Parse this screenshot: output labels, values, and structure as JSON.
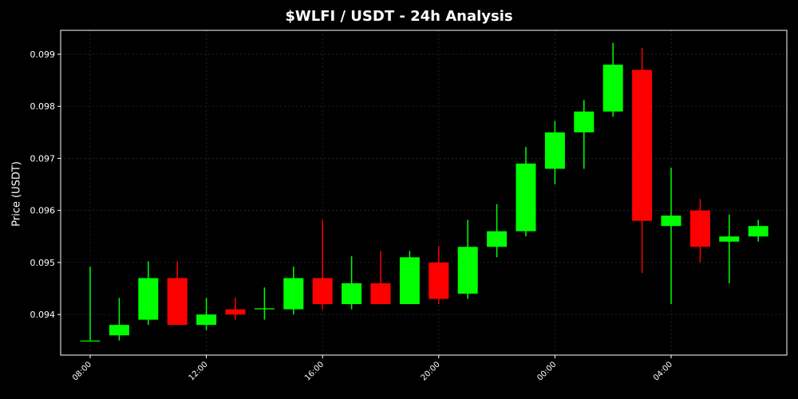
{
  "chart_data": {
    "type": "candlestick",
    "title": "$WLFI / USDT - 24h Analysis",
    "xlabel": "",
    "ylabel": "Price (USDT)",
    "ylim": [
      0.09322,
      0.09946
    ],
    "y_ticks": [
      "0.094",
      "0.095",
      "0.096",
      "0.097",
      "0.098",
      "0.099"
    ],
    "x_ticks": [
      "08:00",
      "12:00",
      "16:00",
      "20:00",
      "00:00",
      "04:00"
    ],
    "grid": true,
    "up_color": "#00ff00",
    "down_color": "#ff0000",
    "candles": [
      {
        "time": "08:00",
        "open": 0.0935,
        "high": 0.09492,
        "low": 0.0935,
        "close": 0.0935
      },
      {
        "time": "09:00",
        "open": 0.0936,
        "high": 0.09432,
        "low": 0.0935,
        "close": 0.0938
      },
      {
        "time": "10:00",
        "open": 0.0939,
        "high": 0.09502,
        "low": 0.0938,
        "close": 0.0947
      },
      {
        "time": "11:00",
        "open": 0.0947,
        "high": 0.09502,
        "low": 0.0938,
        "close": 0.0938
      },
      {
        "time": "12:00",
        "open": 0.0938,
        "high": 0.09432,
        "low": 0.0937,
        "close": 0.094
      },
      {
        "time": "13:00",
        "open": 0.0941,
        "high": 0.09432,
        "low": 0.0939,
        "close": 0.094
      },
      {
        "time": "14:00",
        "open": 0.0941,
        "high": 0.09452,
        "low": 0.0939,
        "close": 0.09412
      },
      {
        "time": "15:00",
        "open": 0.0941,
        "high": 0.09492,
        "low": 0.094,
        "close": 0.0947
      },
      {
        "time": "16:00",
        "open": 0.0947,
        "high": 0.09582,
        "low": 0.0941,
        "close": 0.0942
      },
      {
        "time": "17:00",
        "open": 0.0942,
        "high": 0.09512,
        "low": 0.0941,
        "close": 0.0946
      },
      {
        "time": "18:00",
        "open": 0.0946,
        "high": 0.09522,
        "low": 0.0942,
        "close": 0.0942
      },
      {
        "time": "19:00",
        "open": 0.0942,
        "high": 0.09522,
        "low": 0.0942,
        "close": 0.0951
      },
      {
        "time": "20:00",
        "open": 0.095,
        "high": 0.09532,
        "low": 0.0942,
        "close": 0.0943
      },
      {
        "time": "21:00",
        "open": 0.0944,
        "high": 0.09582,
        "low": 0.0943,
        "close": 0.0953
      },
      {
        "time": "22:00",
        "open": 0.0953,
        "high": 0.09612,
        "low": 0.0951,
        "close": 0.0956
      },
      {
        "time": "23:00",
        "open": 0.0956,
        "high": 0.09722,
        "low": 0.0955,
        "close": 0.0969
      },
      {
        "time": "00:00",
        "open": 0.0968,
        "high": 0.09772,
        "low": 0.0965,
        "close": 0.0975
      },
      {
        "time": "01:00",
        "open": 0.0975,
        "high": 0.09812,
        "low": 0.0968,
        "close": 0.0979
      },
      {
        "time": "02:00",
        "open": 0.0979,
        "high": 0.09922,
        "low": 0.0978,
        "close": 0.0988
      },
      {
        "time": "03:00",
        "open": 0.0987,
        "high": 0.09912,
        "low": 0.0948,
        "close": 0.0958
      },
      {
        "time": "04:00",
        "open": 0.0957,
        "high": 0.09682,
        "low": 0.0942,
        "close": 0.0959
      },
      {
        "time": "05:00",
        "open": 0.096,
        "high": 0.09622,
        "low": 0.095,
        "close": 0.0953
      },
      {
        "time": "06:00",
        "open": 0.0954,
        "high": 0.09592,
        "low": 0.0946,
        "close": 0.0955
      },
      {
        "time": "07:00",
        "open": 0.0955,
        "high": 0.09582,
        "low": 0.0954,
        "close": 0.0957
      }
    ]
  }
}
